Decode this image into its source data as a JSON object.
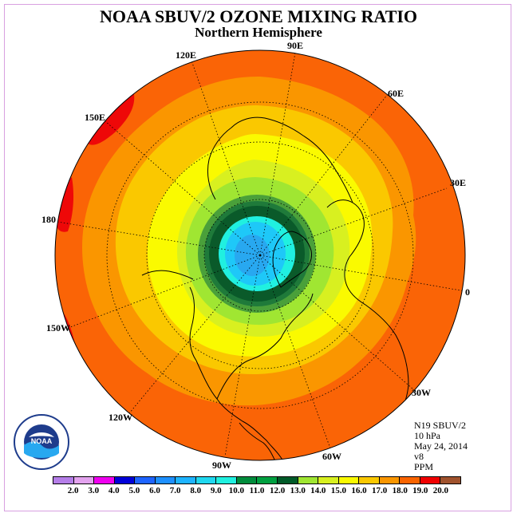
{
  "title": "NOAA SBUV/2 OZONE MIXING RATIO",
  "subtitle": "Northern Hemisphere",
  "longitude_labels": {
    "lon_120e": "120E",
    "lon_90e": "90E",
    "lon_60e": "60E",
    "lon_150e": "150E",
    "lon_30e": "30E",
    "lon_180": "180",
    "lon_0": "0",
    "lon_150w": "150W",
    "lon_30w": "30W",
    "lon_120w": "120W",
    "lon_60w": "60W",
    "lon_90w": "90W"
  },
  "info": {
    "satellite": "N19 SBUV/2",
    "pressure": "10 hPa",
    "date": "May 24, 2014",
    "version": "v8",
    "units": "PPM"
  },
  "logo_text": "NOAA",
  "colorbar": {
    "ticks": [
      "2.0",
      "3.0",
      "4.0",
      "5.0",
      "6.0",
      "7.0",
      "8.0",
      "9.0",
      "10.0",
      "11.0",
      "12.0",
      "13.0",
      "14.0",
      "15.0",
      "16.0",
      "17.0",
      "18.0",
      "19.0",
      "20.0"
    ],
    "colors": [
      "#b57ee8",
      "#e3a3ee",
      "#ef00ef",
      "#0000d8",
      "#1e64ff",
      "#1e90ff",
      "#1eb4ff",
      "#20d8f0",
      "#20f0e0",
      "#008c3c",
      "#00a040",
      "#005a28",
      "#a0e632",
      "#d8f020",
      "#fafa00",
      "#fac800",
      "#fa9600",
      "#fa6400",
      "#f00000",
      "#a0522d"
    ]
  },
  "map_colors": {
    "ppm_19": "#ee0808",
    "ppm_18": "#fa6406",
    "ppm_17": "#fa9600",
    "ppm_16": "#fac800",
    "ppm_15": "#fafa00",
    "ppm_14": "#d8f020",
    "ppm_13": "#a0e632",
    "ppm_12": "#4aa03a",
    "ppm_11": "#1f7a3a",
    "ppm_10": "#0a5a2a",
    "ppm_9": "#20f0e0",
    "ppm_8": "#1ec8f8",
    "ppm_7": "#28a8f0"
  }
}
